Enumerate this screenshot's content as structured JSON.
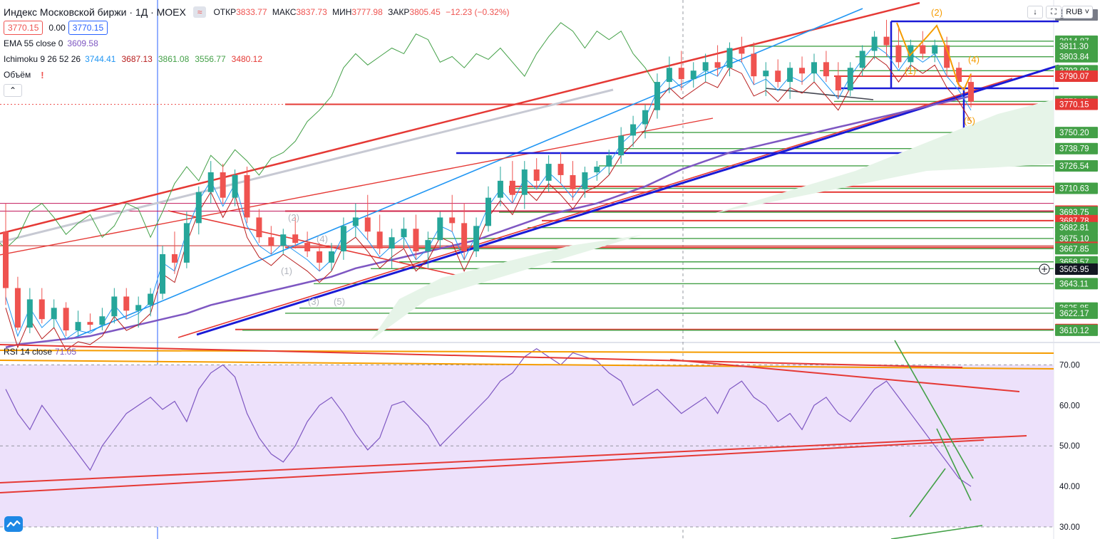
{
  "header": {
    "title": "Индекс Московской биржи · 1Д · MOEX",
    "chip_label": "≈",
    "ohlc": [
      {
        "label": "ОТКР",
        "value": "3833.77"
      },
      {
        "label": "МАКС",
        "value": "3837.73"
      },
      {
        "label": "МИН",
        "value": "3777.98"
      },
      {
        "label": "ЗАКР",
        "value": "3805.45"
      }
    ],
    "change": "−12.23 (−0.32%)",
    "bid": "3770.15",
    "spread": "0.00",
    "ask": "3770.15"
  },
  "indicators": {
    "ema": {
      "label": "EMA 55 close 0",
      "value": "3609.58"
    },
    "ichimoku": {
      "label": "Ichimoku 9 26 52 26",
      "values": [
        {
          "value": "3744.41",
          "color": "#2196f3"
        },
        {
          "value": "3687.13",
          "color": "#b71c1c"
        },
        {
          "value": "3861.08",
          "color": "#43a047"
        },
        {
          "value": "3556.77",
          "color": "#43a047"
        },
        {
          "value": "3480.12",
          "color": "#e53935"
        }
      ]
    },
    "volume": {
      "label": "Объём",
      "warning": "!"
    },
    "collapse_label": "⌃"
  },
  "rsi": {
    "label": "RSI 14 close",
    "value": "71.05"
  },
  "toolbar": {
    "currency": "RUB"
  },
  "wave_labels": {
    "gray": [
      "(2)",
      "(1)",
      "(4)",
      "(3)",
      "(5)"
    ],
    "orange": [
      "(2)",
      "(1)",
      "(4)",
      "(5)"
    ]
  },
  "colors": {
    "up": "#26a69a",
    "down": "#ef5350",
    "ema": "#7e57c2",
    "tenkan": "#2196f3",
    "kijun": "#b71c1c",
    "chikou": "#43a047",
    "level_green": "#43a047",
    "level_red": "#e53935",
    "blue_trend": "#1a1ad6",
    "rsi_line": "#7e57c2",
    "rsi_band": "#ede1fb"
  },
  "chart_data": [
    {
      "type": "candlestick",
      "title": "Индекс Московской биржи · 1Д · MOEX",
      "ylim": [
        3606,
        3840
      ],
      "price_axis_labels": [
        {
          "value": 3833.43,
          "label": "3833.43",
          "kind": "gray"
        },
        {
          "value": 3814.87,
          "label": "3814.87",
          "kind": "green"
        },
        {
          "value": 3811.3,
          "label": "3811.30",
          "kind": "green"
        },
        {
          "value": 3803.84,
          "label": "3803.84",
          "kind": "green"
        },
        {
          "value": 3793.93,
          "label": "3793.93",
          "kind": "green"
        },
        {
          "value": 3790.07,
          "label": "3790.07",
          "kind": "red"
        },
        {
          "value": 3772.18,
          "label": "3772.18",
          "kind": "green"
        },
        {
          "value": 3770.15,
          "label": "3770.15",
          "kind": "red"
        },
        {
          "value": 3750.2,
          "label": "3750.20",
          "kind": "green"
        },
        {
          "value": 3738.79,
          "label": "3738.79",
          "kind": "green"
        },
        {
          "value": 3726.54,
          "label": "3726.54",
          "kind": "green"
        },
        {
          "value": 3710.63,
          "label": "3710.63",
          "kind": "green"
        },
        {
          "value": 3694.51,
          "label": "3694.51",
          "kind": "red"
        },
        {
          "value": 3693.75,
          "label": "3693.75",
          "kind": "green"
        },
        {
          "value": 3687.78,
          "label": "3687.78",
          "kind": "red"
        },
        {
          "value": 3682.81,
          "label": "3682.81",
          "kind": "green"
        },
        {
          "value": 3675.1,
          "label": "3675.10",
          "kind": "green"
        },
        {
          "value": 3668.86,
          "label": "3668.86",
          "kind": "red"
        },
        {
          "value": 3667.85,
          "label": "3667.85",
          "kind": "green"
        },
        {
          "value": 3658.57,
          "label": "3658.57",
          "kind": "green"
        },
        {
          "value": 3653.74,
          "label": "3653.74",
          "kind": "green"
        },
        {
          "value": 3505.95,
          "label": "3505.95",
          "kind": "black"
        },
        {
          "value": 3643.11,
          "label": "3643.11",
          "kind": "green"
        },
        {
          "value": 3625.85,
          "label": "3625.85",
          "kind": "green"
        },
        {
          "value": 3622.17,
          "label": "3622.17",
          "kind": "green"
        },
        {
          "value": 3610.67,
          "label": "3610.67",
          "kind": "red"
        },
        {
          "value": 3610.12,
          "label": "3610.12",
          "kind": "green"
        }
      ],
      "candles": [
        [
          3680,
          3700,
          3628,
          3640
        ],
        [
          3640,
          3648,
          3610,
          3612
        ],
        [
          3612,
          3640,
          3608,
          3632
        ],
        [
          3632,
          3640,
          3615,
          3618
        ],
        [
          3618,
          3632,
          3612,
          3626
        ],
        [
          3626,
          3630,
          3606,
          3610
        ],
        [
          3610,
          3624,
          3606,
          3616
        ],
        [
          3616,
          3622,
          3610,
          3614
        ],
        [
          3614,
          3626,
          3610,
          3620
        ],
        [
          3620,
          3640,
          3615,
          3634
        ],
        [
          3634,
          3640,
          3618,
          3624
        ],
        [
          3624,
          3634,
          3612,
          3628
        ],
        [
          3628,
          3640,
          3620,
          3636
        ],
        [
          3636,
          3670,
          3632,
          3664
        ],
        [
          3664,
          3680,
          3650,
          3658
        ],
        [
          3658,
          3694,
          3654,
          3686
        ],
        [
          3686,
          3712,
          3678,
          3708
        ],
        [
          3708,
          3730,
          3700,
          3722
        ],
        [
          3722,
          3728,
          3700,
          3704
        ],
        [
          3704,
          3724,
          3698,
          3720
        ],
        [
          3720,
          3726,
          3686,
          3690
        ],
        [
          3690,
          3696,
          3672,
          3676
        ],
        [
          3676,
          3684,
          3664,
          3670
        ],
        [
          3670,
          3682,
          3664,
          3678
        ],
        [
          3678,
          3690,
          3668,
          3672
        ],
        [
          3672,
          3680,
          3662,
          3666
        ],
        [
          3666,
          3672,
          3652,
          3658
        ],
        [
          3658,
          3672,
          3652,
          3666
        ],
        [
          3666,
          3690,
          3660,
          3684
        ],
        [
          3684,
          3700,
          3676,
          3690
        ],
        [
          3690,
          3706,
          3674,
          3680
        ],
        [
          3680,
          3692,
          3664,
          3668
        ],
        [
          3668,
          3682,
          3654,
          3676
        ],
        [
          3676,
          3690,
          3668,
          3682
        ],
        [
          3682,
          3692,
          3660,
          3666
        ],
        [
          3666,
          3680,
          3654,
          3674
        ],
        [
          3674,
          3694,
          3668,
          3690
        ],
        [
          3690,
          3706,
          3680,
          3686
        ],
        [
          3686,
          3700,
          3660,
          3666
        ],
        [
          3666,
          3690,
          3662,
          3684
        ],
        [
          3684,
          3712,
          3680,
          3704
        ],
        [
          3704,
          3726,
          3698,
          3716
        ],
        [
          3716,
          3730,
          3700,
          3706
        ],
        [
          3706,
          3730,
          3696,
          3724
        ],
        [
          3724,
          3732,
          3710,
          3716
        ],
        [
          3716,
          3734,
          3708,
          3728
        ],
        [
          3728,
          3736,
          3714,
          3720
        ],
        [
          3720,
          3730,
          3702,
          3710
        ],
        [
          3710,
          3726,
          3704,
          3722
        ],
        [
          3722,
          3730,
          3716,
          3726
        ],
        [
          3726,
          3738,
          3720,
          3734
        ],
        [
          3734,
          3754,
          3728,
          3748
        ],
        [
          3748,
          3762,
          3740,
          3756
        ],
        [
          3756,
          3770,
          3746,
          3766
        ],
        [
          3766,
          3792,
          3760,
          3786
        ],
        [
          3786,
          3804,
          3778,
          3796
        ],
        [
          3796,
          3808,
          3780,
          3788
        ],
        [
          3788,
          3800,
          3782,
          3794
        ],
        [
          3794,
          3806,
          3786,
          3800
        ],
        [
          3800,
          3812,
          3790,
          3796
        ],
        [
          3796,
          3814,
          3790,
          3810
        ],
        [
          3810,
          3818,
          3800,
          3806
        ],
        [
          3806,
          3814,
          3784,
          3790
        ],
        [
          3790,
          3800,
          3776,
          3794
        ],
        [
          3794,
          3802,
          3782,
          3786
        ],
        [
          3786,
          3800,
          3774,
          3796
        ],
        [
          3796,
          3804,
          3784,
          3792
        ],
        [
          3792,
          3806,
          3786,
          3800
        ],
        [
          3800,
          3808,
          3786,
          3790
        ],
        [
          3790,
          3800,
          3774,
          3780
        ],
        [
          3780,
          3800,
          3776,
          3796
        ],
        [
          3796,
          3812,
          3790,
          3808
        ],
        [
          3808,
          3822,
          3802,
          3818
        ],
        [
          3818,
          3830,
          3804,
          3812
        ],
        [
          3812,
          3826,
          3796,
          3800
        ],
        [
          3800,
          3816,
          3796,
          3812
        ],
        [
          3812,
          3822,
          3802,
          3806
        ],
        [
          3806,
          3816,
          3800,
          3812
        ],
        [
          3812,
          3818,
          3790,
          3796
        ],
        [
          3796,
          3800,
          3782,
          3786
        ],
        [
          3786,
          3792,
          3768,
          3772
        ]
      ],
      "ema55": [
        3598,
        3600,
        3601,
        3602,
        3603,
        3604,
        3605,
        3606,
        3608,
        3610,
        3612,
        3614,
        3616,
        3618,
        3620,
        3622,
        3625,
        3628,
        3630,
        3632,
        3634,
        3636,
        3638,
        3640,
        3642,
        3644,
        3646,
        3648,
        3651,
        3654,
        3656,
        3658,
        3660,
        3662,
        3664,
        3666,
        3668,
        3670,
        3672,
        3674,
        3677,
        3680,
        3683,
        3686,
        3689,
        3692,
        3694,
        3696,
        3698,
        3700,
        3703,
        3706,
        3709,
        3712,
        3716,
        3720,
        3724,
        3727,
        3730,
        3733,
        3736,
        3738,
        3740,
        3742,
        3744,
        3746,
        3748,
        3750,
        3752,
        3754,
        3756,
        3758,
        3760,
        3762,
        3764,
        3766,
        3768,
        3770,
        3772,
        3774,
        3776
      ]
    },
    {
      "type": "line",
      "title": "RSI 14 close",
      "ylim": [
        27,
        75
      ],
      "y_ticks": [
        {
          "value": 70,
          "label": "70.00"
        },
        {
          "value": 60,
          "label": "60.00"
        },
        {
          "value": 50,
          "label": "50.00"
        },
        {
          "value": 40,
          "label": "40.00"
        },
        {
          "value": 30,
          "label": "30.00"
        }
      ],
      "band": [
        30,
        70
      ],
      "values": [
        64,
        58,
        54,
        60,
        56,
        52,
        48,
        44,
        50,
        54,
        58,
        60,
        62,
        59,
        61,
        56,
        64,
        68,
        70,
        67,
        58,
        52,
        48,
        46,
        50,
        56,
        60,
        62,
        58,
        53,
        49,
        52,
        60,
        61,
        58,
        55,
        50,
        53,
        56,
        59,
        62,
        66,
        68,
        72,
        74,
        72,
        70,
        73,
        72,
        71,
        68,
        66,
        60,
        62,
        64,
        61,
        58,
        60,
        62,
        58,
        64,
        66,
        62,
        60,
        56,
        58,
        54,
        60,
        62,
        58,
        56,
        60,
        64,
        66,
        62,
        58,
        54,
        50,
        46,
        42,
        40
      ]
    }
  ]
}
